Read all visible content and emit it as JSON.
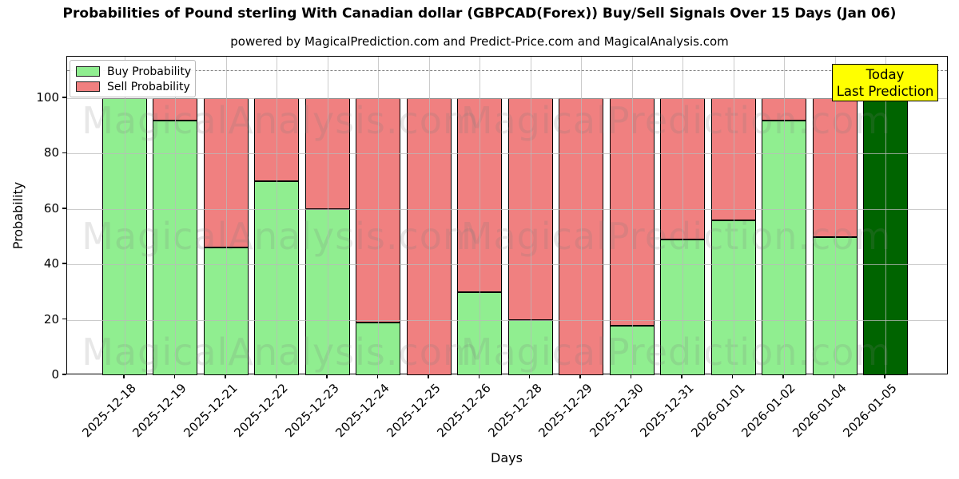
{
  "chart_data": {
    "type": "bar",
    "stacked": true,
    "title": "Probabilities of Pound sterling With Canadian dollar (GBPCAD(Forex)) Buy/Sell Signals Over 15 Days (Jan 06)",
    "subtitle": "powered by MagicalPrediction.com and Predict-Price.com and MagicalAnalysis.com",
    "xlabel": "Days",
    "ylabel": "Probability",
    "categories": [
      "2025-12-18",
      "2025-12-19",
      "2025-12-21",
      "2025-12-22",
      "2025-12-23",
      "2025-12-24",
      "2025-12-25",
      "2025-12-26",
      "2025-12-28",
      "2025-12-29",
      "2025-12-30",
      "2025-12-31",
      "2026-01-01",
      "2026-01-02",
      "2026-01-04",
      "2026-01-05"
    ],
    "series": [
      {
        "name": "Buy Probability",
        "color": "#90EE90",
        "values": [
          100,
          92,
          46,
          70,
          60,
          19,
          0,
          30,
          20,
          0,
          18,
          49,
          56,
          92,
          50,
          100
        ]
      },
      {
        "name": "Sell Probability",
        "color": "#F08080",
        "values": [
          0,
          8,
          54,
          30,
          40,
          81,
          100,
          70,
          80,
          100,
          82,
          51,
          44,
          8,
          50,
          0
        ]
      }
    ],
    "today_bar": {
      "index": 15,
      "color": "#006400"
    },
    "ylim": [
      0,
      115
    ],
    "yticks": [
      0,
      20,
      40,
      60,
      80,
      100
    ],
    "dashed_line_y": 110,
    "grid": true,
    "legend_position": "top-left",
    "annotation": {
      "line1": "Today",
      "line2": "Last Prediction",
      "bg_color": "#FFFF00"
    },
    "watermarks": {
      "left": "MagicalAnalysis.com",
      "right": "MagicalPrediction.com"
    },
    "colors": {
      "bar_edge": "#000000",
      "grid": "#b9b9b9",
      "dashed_line": "#7e7e7e"
    }
  }
}
